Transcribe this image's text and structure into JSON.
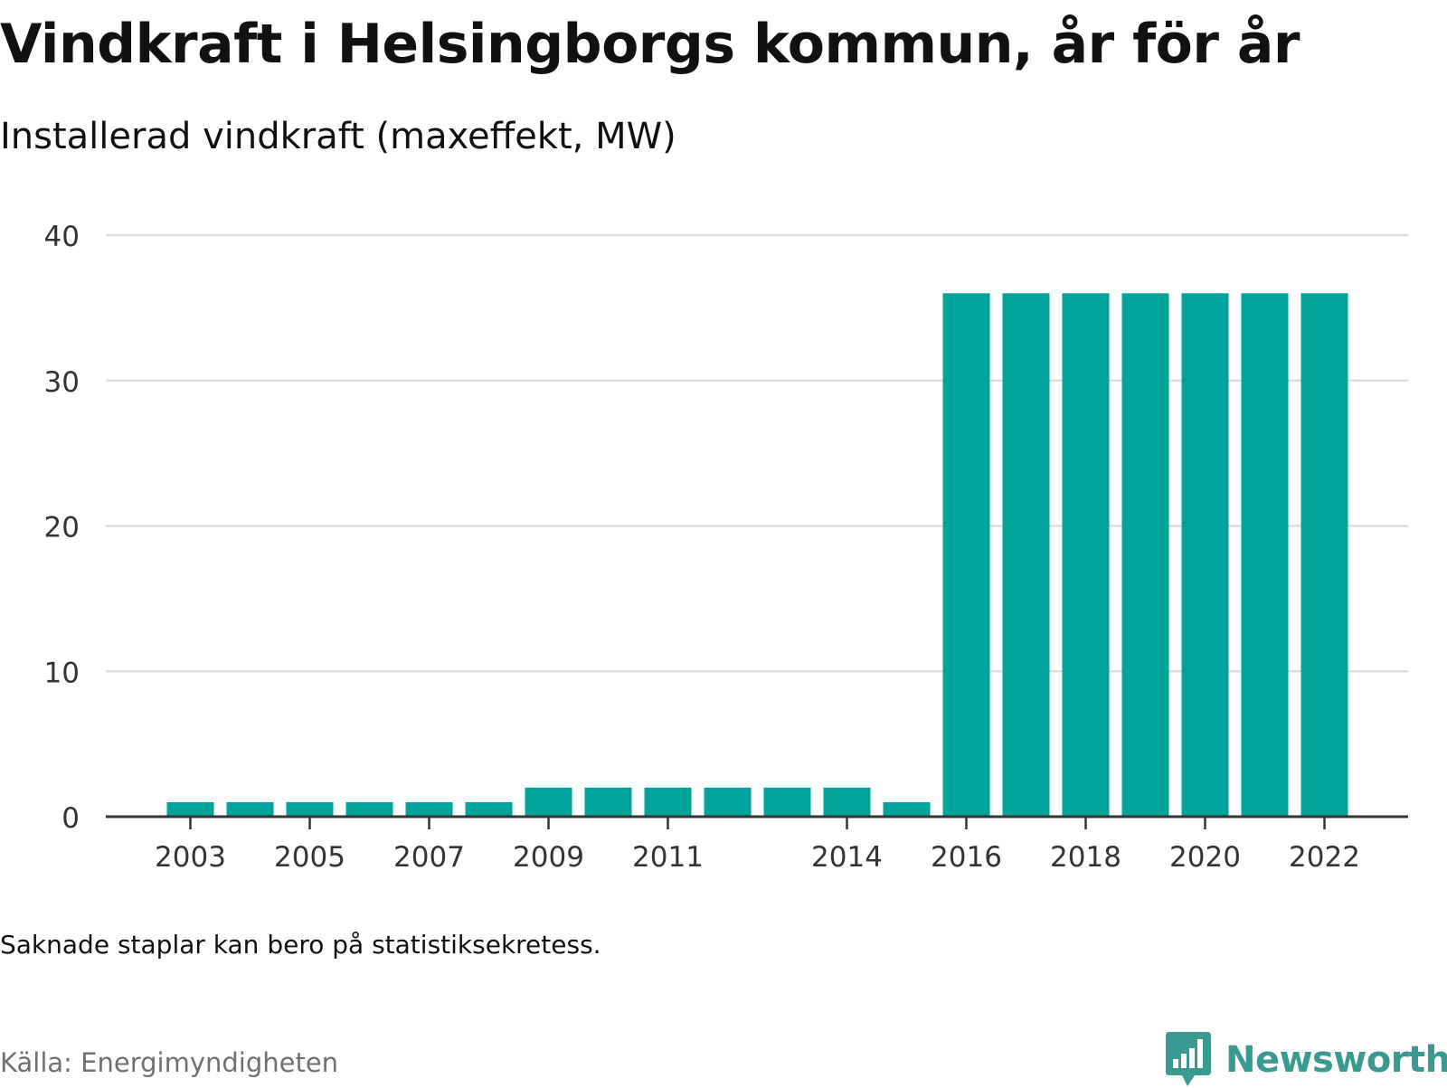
{
  "title": "Vindkraft i Helsingborgs kommun, år för år",
  "subtitle": "Installerad vindkraft (maxeffekt, MW)",
  "note": "Saknade staplar kan bero på statistiksekretess.",
  "source": "Källa: Energimyndigheten",
  "logo": {
    "text": "Newsworthy",
    "icon": "bar-chart-speech-bubble-icon"
  },
  "colors": {
    "bar": "#00a49a",
    "grid": "#dddddd",
    "axis": "#333333",
    "logo": "#3a9a92"
  },
  "chart_data": {
    "type": "bar",
    "categories": [
      "2003",
      "2004",
      "2005",
      "2006",
      "2007",
      "2008",
      "2009",
      "2010",
      "2011",
      "2012",
      "2013",
      "2014",
      "2015",
      "2016",
      "2017",
      "2018",
      "2019",
      "2020",
      "2021",
      "2022"
    ],
    "values": [
      1,
      1,
      1,
      1,
      1,
      1,
      2,
      2,
      2,
      2,
      2,
      2,
      1,
      36,
      36,
      36,
      36,
      36,
      36,
      36
    ],
    "x_tick_labels": [
      "2003",
      "2005",
      "2007",
      "2009",
      "2011",
      "2014",
      "2016",
      "2018",
      "2020",
      "2022"
    ],
    "y_ticks": [
      0,
      10,
      20,
      30,
      40
    ],
    "ylim": [
      0,
      40
    ],
    "xlabel": "",
    "ylabel": "",
    "grid": true
  }
}
